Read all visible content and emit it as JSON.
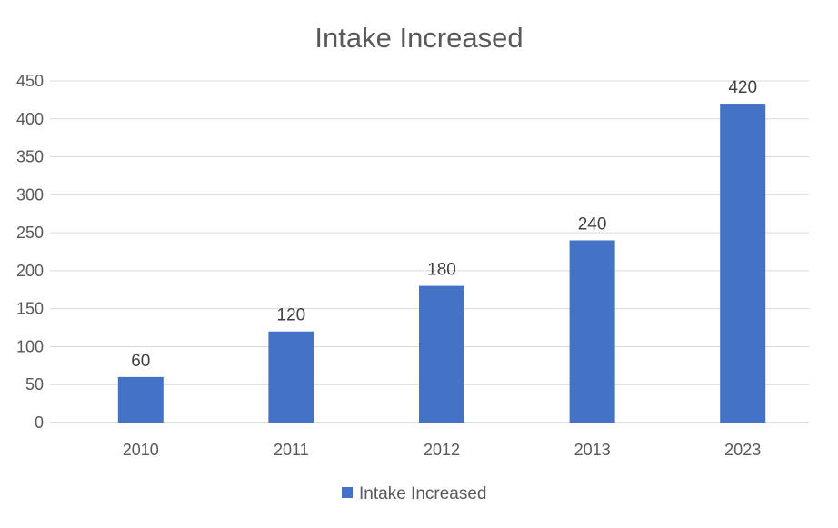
{
  "chart_data": {
    "type": "bar",
    "title": "Intake Increased",
    "xlabel": "",
    "ylabel": "",
    "categories": [
      "2010",
      "2011",
      "2012",
      "2013",
      "2023"
    ],
    "series": [
      {
        "name": "Intake Increased",
        "values": [
          60,
          120,
          180,
          240,
          420
        ],
        "color": "#4472C4"
      }
    ],
    "ylim": [
      0,
      450
    ],
    "yticks": [
      0,
      50,
      100,
      150,
      200,
      250,
      300,
      350,
      400,
      450
    ],
    "grid": true,
    "data_labels": true,
    "legend": "bottom"
  }
}
